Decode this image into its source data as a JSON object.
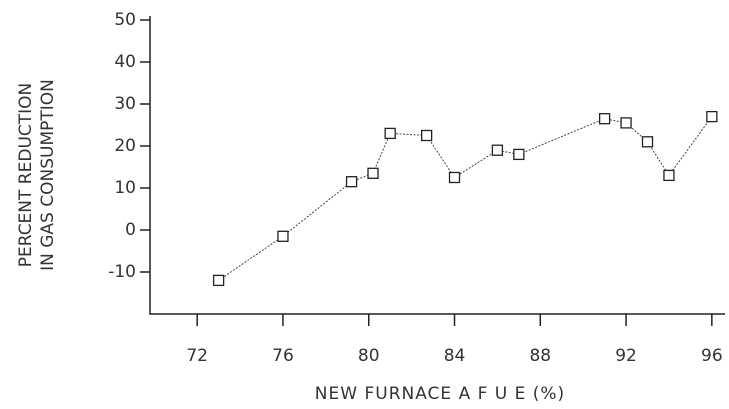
{
  "chart_data": {
    "type": "line",
    "x_label": "NEW FURNACE A F U E (%)",
    "y_label": [
      "PERCENT REDUCTION",
      "IN GAS CONSUMPTION"
    ],
    "x": [
      73,
      76,
      79.2,
      80.2,
      81,
      82.7,
      84,
      86,
      87,
      91,
      92,
      93,
      94,
      96
    ],
    "values": [
      -12,
      -1.5,
      11.5,
      13.5,
      23,
      22.5,
      12.5,
      19,
      18,
      26.5,
      25.5,
      21,
      13,
      27
    ],
    "color": "#444",
    "xlim": [
      69.8,
      96.8
    ],
    "xticks": [
      72,
      76,
      80,
      84,
      88,
      92,
      96
    ],
    "ylim": [
      -20,
      50
    ],
    "yticks": [
      -10,
      0,
      10,
      20,
      30,
      40,
      50
    ]
  }
}
